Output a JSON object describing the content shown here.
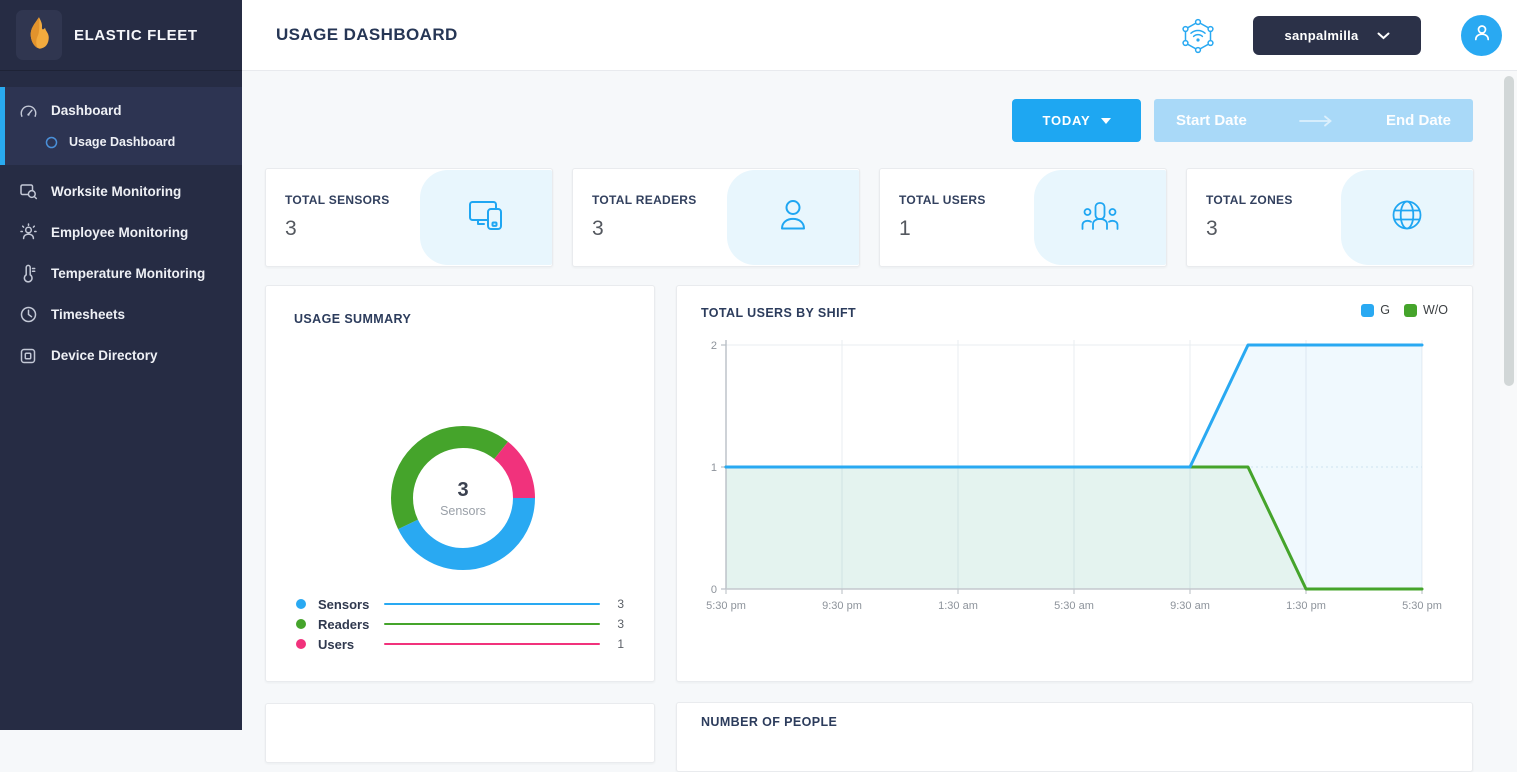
{
  "sidebar": {
    "brand": "ELASTIC FLEET",
    "items": [
      {
        "label": "Dashboard",
        "icon": "dashboard-icon",
        "active": true
      },
      {
        "label": "Usage Dashboard",
        "icon": "radio-circle-icon",
        "active": true,
        "sub": true
      },
      {
        "label": "Worksite Monitoring",
        "icon": "worksite-icon"
      },
      {
        "label": "Employee Monitoring",
        "icon": "employee-icon"
      },
      {
        "label": "Temperature Monitoring",
        "icon": "temperature-icon"
      },
      {
        "label": "Timesheets",
        "icon": "clock-icon"
      },
      {
        "label": "Device Directory",
        "icon": "chip-icon"
      }
    ]
  },
  "header": {
    "title": "USAGE DASHBOARD",
    "username": "sanpalmilla"
  },
  "filters": {
    "preset_label": "TODAY",
    "start_placeholder": "Start Date",
    "end_placeholder": "End Date"
  },
  "stats": [
    {
      "label": "TOTAL SENSORS",
      "value": "3",
      "icon": "devices-icon"
    },
    {
      "label": "TOTAL READERS",
      "value": "3",
      "icon": "person-icon"
    },
    {
      "label": "TOTAL USERS",
      "value": "1",
      "icon": "people-group-icon"
    },
    {
      "label": "TOTAL ZONES",
      "value": "3",
      "icon": "globe-icon"
    }
  ],
  "cards": {
    "number_of_people_title": "NUMBER OF PEOPLE"
  },
  "colors": {
    "accent_blue": "#1ea7f2",
    "chart_blue": "#29a9f2",
    "chart_green": "#45a42b",
    "chart_pink": "#f1327c",
    "sidebar_bg": "#262c44",
    "active_bar": "#29aaf0",
    "light_blue_chip": "#a9d9f8",
    "icon_panel_bg": "#e8f6fd"
  },
  "chart_data": [
    {
      "type": "pie",
      "title": "USAGE SUMMARY",
      "labels": [
        "Sensors",
        "Readers",
        "Users"
      ],
      "values": [
        3,
        3,
        1
      ],
      "colors": [
        "#29a9f2",
        "#45a42b",
        "#f1327c"
      ],
      "center_label": "3",
      "center_sublabel": "Sensors",
      "donut": true,
      "legend_position": "bottom"
    },
    {
      "type": "line",
      "title": "TOTAL USERS BY SHIFT",
      "x": [
        "5:30 pm",
        "7:30 pm",
        "9:30 pm",
        "11:30 pm",
        "1:30 am",
        "3:30 am",
        "5:30 am",
        "7:30 am",
        "9:30 am",
        "11:30 am",
        "1:30 pm",
        "3:30 pm",
        "5:30 pm"
      ],
      "tick_labels": [
        "5:30 pm",
        "9:30 pm",
        "1:30 am",
        "5:30 am",
        "9:30 am",
        "1:30 pm",
        "5:30 pm"
      ],
      "series": [
        {
          "name": "G",
          "color": "#29a9f2",
          "values": [
            1,
            1,
            1,
            1,
            1,
            1,
            1,
            1,
            1,
            2,
            2,
            2,
            2
          ]
        },
        {
          "name": "W/O",
          "color": "#45a42b",
          "values": [
            1,
            1,
            1,
            1,
            1,
            1,
            1,
            1,
            1,
            1,
            0,
            0,
            0
          ]
        }
      ],
      "ylim": [
        0,
        2
      ],
      "yticks": [
        0,
        1,
        2
      ],
      "grid": true,
      "area_fill": true,
      "legend_position": "top-right"
    }
  ]
}
